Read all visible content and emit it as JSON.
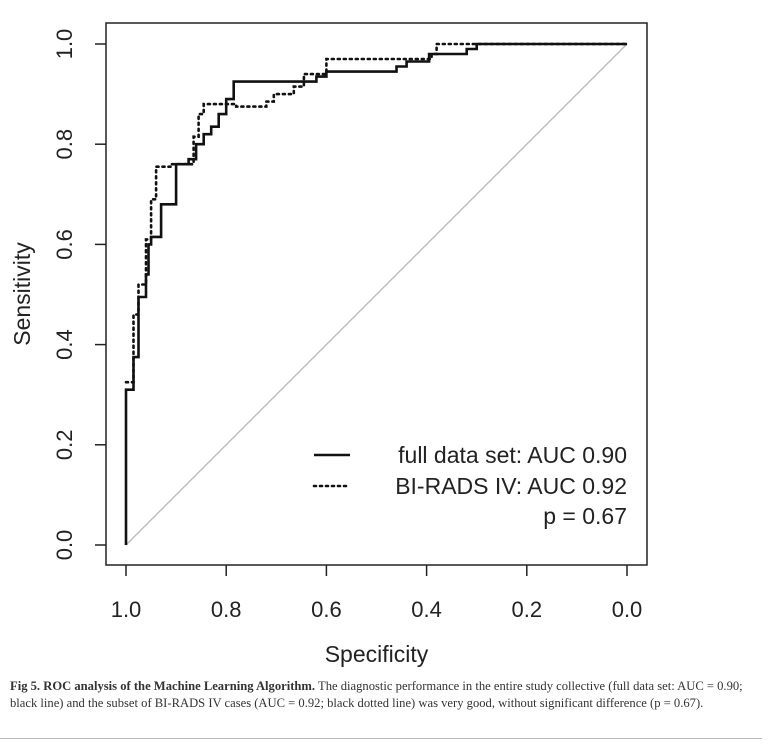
{
  "chart_data": {
    "type": "line",
    "xlabel": "Specificity",
    "ylabel": "Sensitivity",
    "xlim": [
      1.0,
      0.0
    ],
    "ylim": [
      0.0,
      1.0
    ],
    "x_ticks": [
      "1.0",
      "0.8",
      "0.6",
      "0.4",
      "0.2",
      "0.0"
    ],
    "y_ticks": [
      "0.0",
      "0.2",
      "0.4",
      "0.6",
      "0.8",
      "1.0"
    ],
    "reference_line": {
      "from": [
        1.0,
        0.0
      ],
      "to": [
        0.0,
        1.0
      ],
      "color": "#bbbbbb"
    },
    "series": [
      {
        "name": "full data set",
        "style": "solid",
        "points": [
          [
            1.0,
            0.0
          ],
          [
            1.0,
            0.31
          ],
          [
            0.985,
            0.31
          ],
          [
            0.985,
            0.375
          ],
          [
            0.975,
            0.375
          ],
          [
            0.975,
            0.495
          ],
          [
            0.96,
            0.495
          ],
          [
            0.96,
            0.54
          ],
          [
            0.955,
            0.54
          ],
          [
            0.955,
            0.6
          ],
          [
            0.95,
            0.6
          ],
          [
            0.95,
            0.615
          ],
          [
            0.93,
            0.615
          ],
          [
            0.93,
            0.68
          ],
          [
            0.9,
            0.68
          ],
          [
            0.9,
            0.76
          ],
          [
            0.875,
            0.76
          ],
          [
            0.875,
            0.77
          ],
          [
            0.86,
            0.77
          ],
          [
            0.86,
            0.8
          ],
          [
            0.845,
            0.8
          ],
          [
            0.845,
            0.82
          ],
          [
            0.83,
            0.82
          ],
          [
            0.83,
            0.835
          ],
          [
            0.815,
            0.835
          ],
          [
            0.815,
            0.86
          ],
          [
            0.8,
            0.86
          ],
          [
            0.8,
            0.89
          ],
          [
            0.785,
            0.89
          ],
          [
            0.785,
            0.925
          ],
          [
            0.68,
            0.925
          ],
          [
            0.62,
            0.925
          ],
          [
            0.62,
            0.935
          ],
          [
            0.6,
            0.935
          ],
          [
            0.6,
            0.945
          ],
          [
            0.46,
            0.945
          ],
          [
            0.46,
            0.955
          ],
          [
            0.44,
            0.955
          ],
          [
            0.44,
            0.965
          ],
          [
            0.395,
            0.965
          ],
          [
            0.395,
            0.98
          ],
          [
            0.32,
            0.98
          ],
          [
            0.32,
            0.99
          ],
          [
            0.3,
            0.99
          ],
          [
            0.3,
            1.0
          ],
          [
            0.0,
            1.0
          ]
        ]
      },
      {
        "name": "BI-RADS IV",
        "style": "dotted",
        "points": [
          [
            1.0,
            0.325
          ],
          [
            0.985,
            0.325
          ],
          [
            0.985,
            0.46
          ],
          [
            0.975,
            0.46
          ],
          [
            0.975,
            0.52
          ],
          [
            0.96,
            0.52
          ],
          [
            0.96,
            0.61
          ],
          [
            0.95,
            0.61
          ],
          [
            0.95,
            0.69
          ],
          [
            0.94,
            0.69
          ],
          [
            0.94,
            0.755
          ],
          [
            0.91,
            0.755
          ],
          [
            0.91,
            0.76
          ],
          [
            0.865,
            0.76
          ],
          [
            0.865,
            0.815
          ],
          [
            0.855,
            0.815
          ],
          [
            0.855,
            0.86
          ],
          [
            0.845,
            0.86
          ],
          [
            0.845,
            0.88
          ],
          [
            0.78,
            0.88
          ],
          [
            0.78,
            0.875
          ],
          [
            0.72,
            0.875
          ],
          [
            0.72,
            0.885
          ],
          [
            0.705,
            0.885
          ],
          [
            0.705,
            0.9
          ],
          [
            0.665,
            0.9
          ],
          [
            0.665,
            0.915
          ],
          [
            0.645,
            0.915
          ],
          [
            0.645,
            0.94
          ],
          [
            0.6,
            0.94
          ],
          [
            0.6,
            0.97
          ],
          [
            0.39,
            0.97
          ],
          [
            0.39,
            0.98
          ],
          [
            0.38,
            0.98
          ],
          [
            0.38,
            1.0
          ],
          [
            0.0,
            1.0
          ]
        ]
      }
    ],
    "legend": {
      "placement": "bottom-right",
      "entries": [
        "full data set: AUC 0.90",
        "BI-RADS IV: AUC 0.92"
      ],
      "note": "p = 0.67"
    }
  },
  "caption": {
    "label": "Fig 5.",
    "title": "ROC analysis of the Machine Learning Algorithm.",
    "text": "The diagnostic performance in the entire study collective (full data set: AUC = 0.90; black line) and the subset of BI-RADS IV cases (AUC = 0.92; black dotted line) was very good, without significant difference (p = 0.67)."
  }
}
